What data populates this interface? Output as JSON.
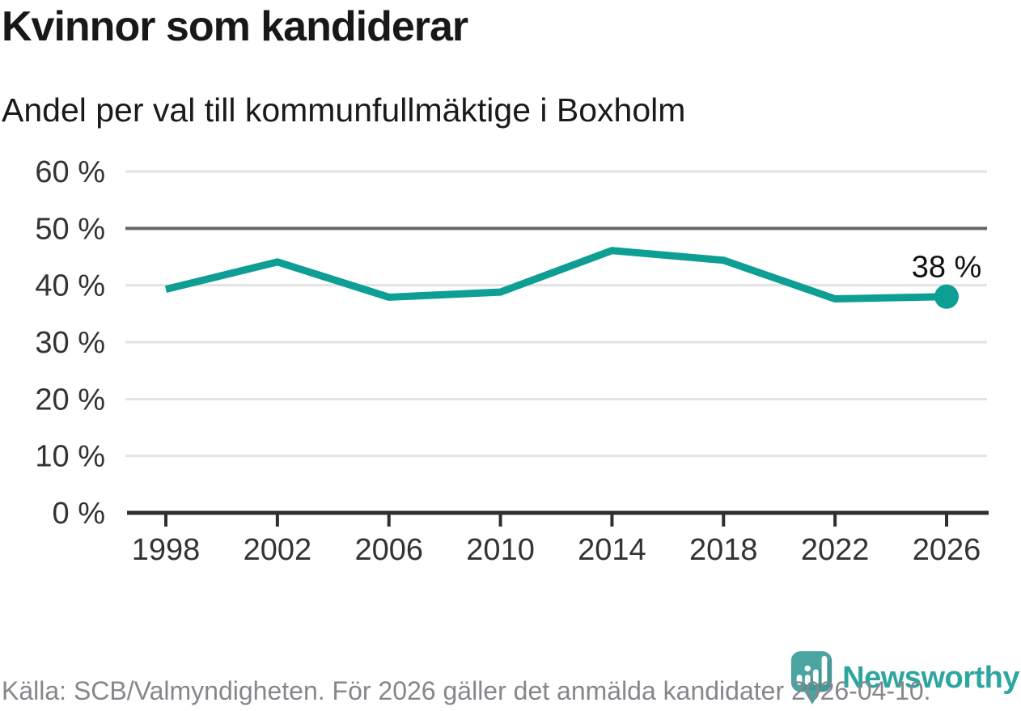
{
  "chart_data": {
    "type": "line",
    "title": "Kvinnor som kandiderar",
    "subtitle": "Andel per val till kommunfullmäktige i Boxholm",
    "source": "Källa: SCB/Valmyndigheten. För 2026 gäller det anmälda kandidater 2026-04-10.",
    "categories": [
      "1998",
      "2002",
      "2006",
      "2010",
      "2014",
      "2018",
      "2022",
      "2026"
    ],
    "values": [
      39.3,
      44.1,
      37.9,
      38.8,
      46.1,
      44.4,
      37.6,
      38
    ],
    "xlabel": "",
    "ylabel": "",
    "ylim": [
      0,
      60
    ],
    "y_tick_values": [
      0,
      10,
      20,
      30,
      40,
      50,
      60
    ],
    "y_tick_labels": [
      "0 %",
      "10 %",
      "20 %",
      "30 %",
      "40 %",
      "50 %",
      "60 %"
    ],
    "benchmark_value": 50,
    "end_point_label": "38 %",
    "grid": "horizontal",
    "legend": "none"
  },
  "branding": {
    "logo_text": "Newsworthy"
  },
  "colors": {
    "line": "#0d9e94",
    "end_dot": "#0d9e94",
    "gridline": "#e3e3e3",
    "benchmark_gridline": "#666666",
    "axis": "#2f2f2f",
    "tick_text": "#333333",
    "annotation_text": "#111111",
    "title_text": "#181818",
    "muted_text": "#85878c",
    "logo_teal": "#4aa4a1",
    "logo_text_teal": "#2ea6a0"
  }
}
